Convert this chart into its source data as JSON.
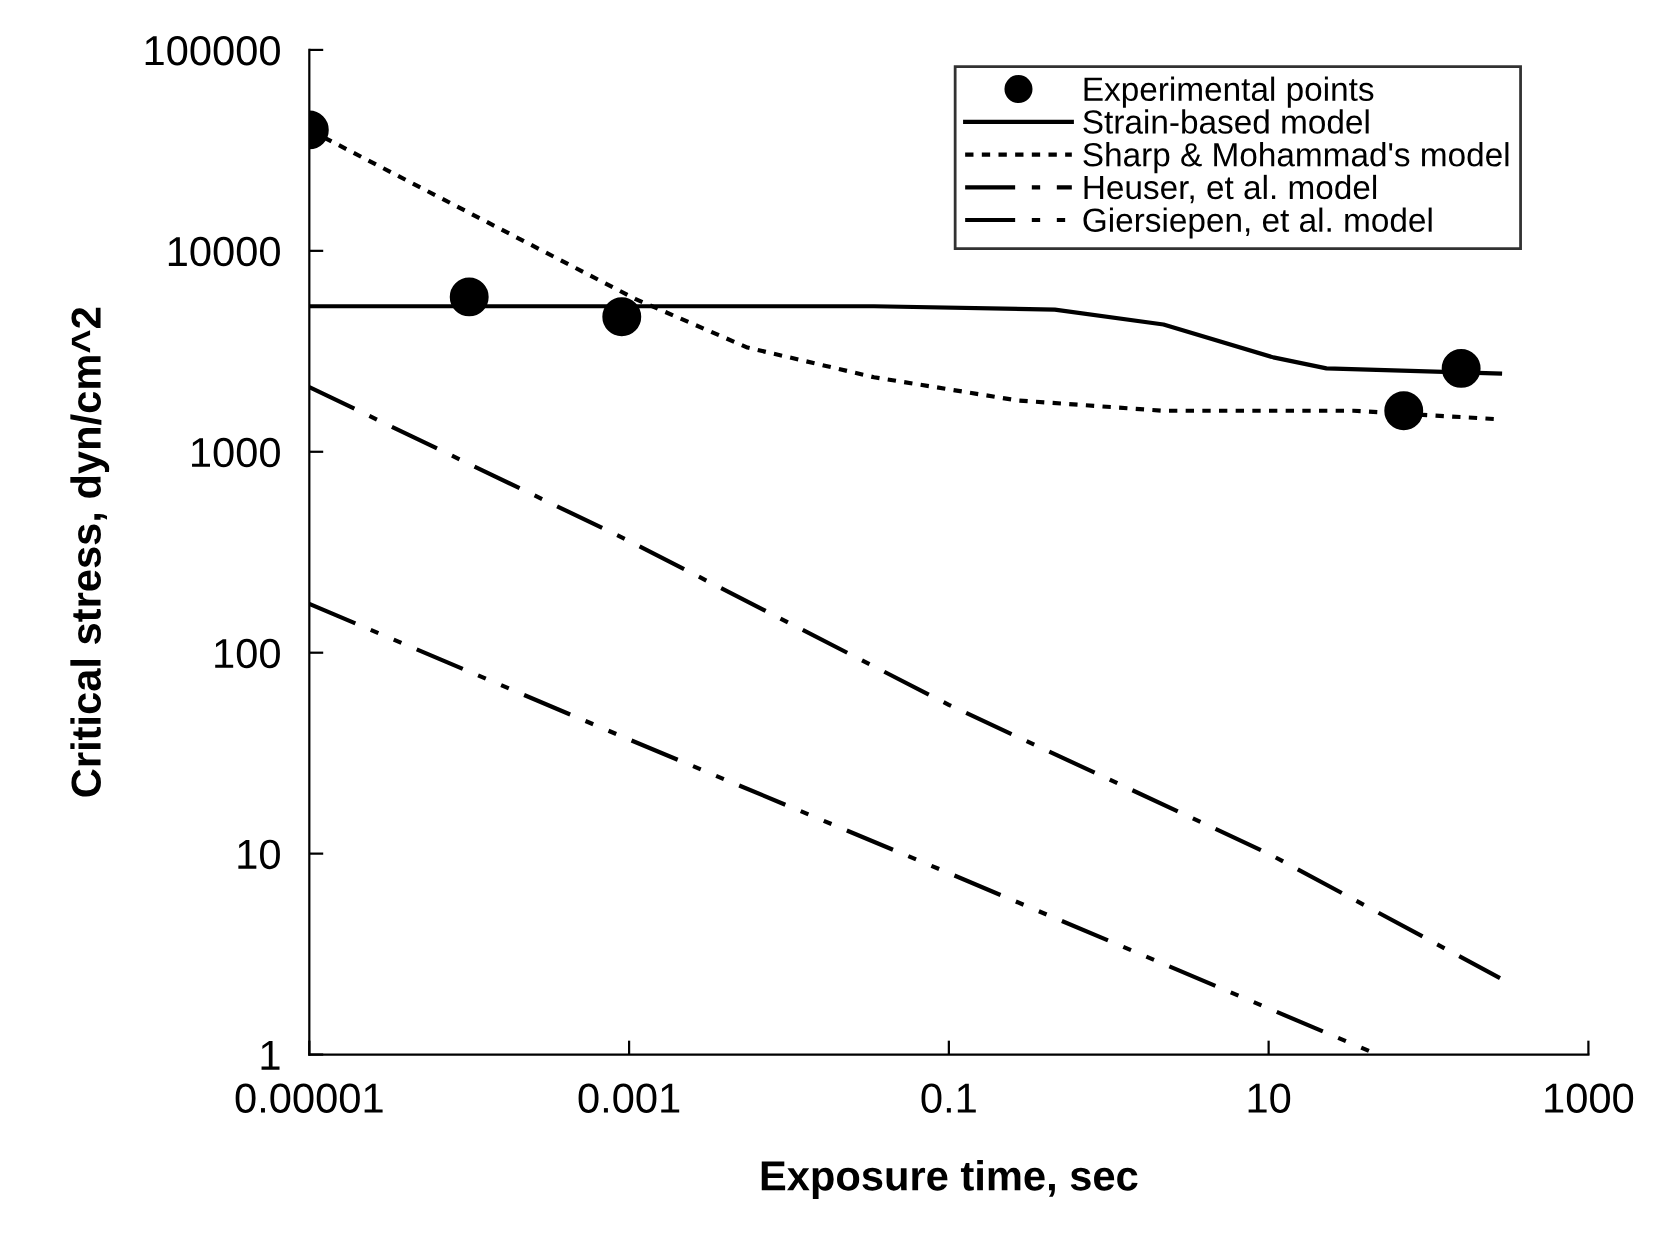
{
  "chart_data": {
    "type": "line",
    "xlabel": "Exposure time, sec",
    "ylabel": "Critical stress, dyn/cm^2",
    "log": "xy",
    "grid": false,
    "legend": "top right",
    "xlim": [
      1e-05,
      1000
    ],
    "ylim": [
      1,
      100000
    ],
    "xticks": [
      {
        "value": 1e-05,
        "label": "0.00001"
      },
      {
        "value": 0.001,
        "label": "0.001"
      },
      {
        "value": 0.1,
        "label": "0.1"
      },
      {
        "value": 10,
        "label": "10"
      },
      {
        "value": 1000,
        "label": "1000"
      }
    ],
    "yticks": [
      {
        "value": 1,
        "label": "1"
      },
      {
        "value": 10,
        "label": "10"
      },
      {
        "value": 100,
        "label": "100"
      },
      {
        "value": 1000,
        "label": "1000"
      },
      {
        "value": 10000,
        "label": "10000"
      },
      {
        "value": 100000,
        "label": "100000"
      }
    ],
    "series": [
      {
        "name": "Experimental points",
        "type": "scatter",
        "marker": "circle",
        "color": "#000000",
        "x": [
          1e-05,
          0.0001,
          0.0009,
          70,
          160
        ],
        "values": [
          40000,
          5900,
          4700,
          1600,
          2600
        ]
      },
      {
        "name": "Strain-based model",
        "line_style": "solid",
        "color": "#000000",
        "x": [
          1e-05,
          0.001,
          0.034,
          0.46,
          2.2,
          10.7,
          23,
          280
        ],
        "values": [
          5300,
          5300,
          5300,
          5100,
          4300,
          2950,
          2600,
          2450
        ]
      },
      {
        "name": "Sharp & Mohammad's model",
        "line_style": "dotted",
        "color": "#000000",
        "x": [
          1e-05,
          0.0011,
          0.0055,
          0.034,
          0.27,
          2.2,
          34,
          280
        ],
        "values": [
          40000,
          5750,
          3300,
          2350,
          1800,
          1600,
          1600,
          1450
        ]
      },
      {
        "name": "Heuser, et al. model",
        "line_style": "dashdot",
        "color": "#000000",
        "x": [
          1e-05,
          0.001,
          0.1,
          10,
          280
        ],
        "values": [
          2100,
          360,
          55,
          10,
          2.4
        ]
      },
      {
        "name": "Giersiepen, et al. model",
        "line_style": "dashdotdot",
        "color": "#000000",
        "x": [
          1e-05,
          0.001,
          0.1,
          48
        ],
        "values": [
          175,
          37,
          8,
          1
        ]
      }
    ]
  }
}
